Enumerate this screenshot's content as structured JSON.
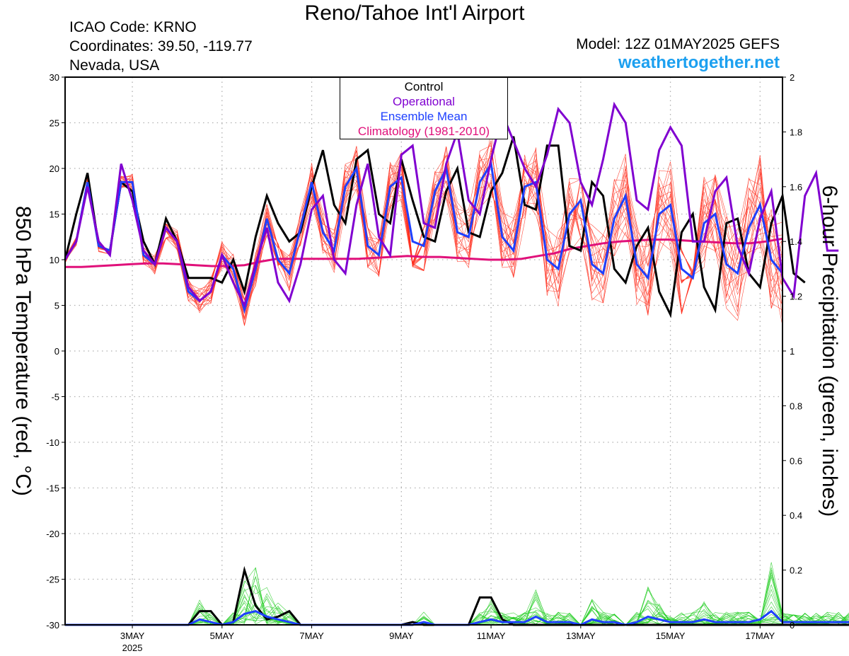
{
  "header": {
    "title": "Reno/Tahoe Int'l Airport",
    "icao": "ICAO Code: KRNO",
    "coordinates": "Coordinates: 39.50, -119.77",
    "region": "Nevada, USA",
    "model": "Model: 12Z 01MAY2025 GEFS",
    "site": "weathertogether.net"
  },
  "colors": {
    "control": "#000000",
    "operational": "#8000d0",
    "ensemble_mean": "#1e40ff",
    "climatology": "#e0107a",
    "members_temp": "#ff3020",
    "members_precip": "#20cc20",
    "site": "#1ca0f0"
  },
  "chart_data": {
    "type": "line",
    "ylabel_left": "850 hPa Temperature (red, °C)",
    "ylabel_right": "6-hour Precipitation (green, inches)",
    "ylim_left": [
      -30,
      30
    ],
    "ylim_right": [
      0,
      2
    ],
    "yticks_left": [
      "30",
      "25",
      "20",
      "15",
      "10",
      "5",
      "0",
      "-5",
      "-10",
      "-15",
      "-20",
      "-25",
      "-30"
    ],
    "yticks_right": [
      "2",
      "1.8",
      "1.6",
      "1.4",
      "1.2",
      "1",
      "0.8",
      "0.6",
      "0.4",
      "0.2",
      "0"
    ],
    "xticks": [
      {
        "day": 3,
        "label": "3MAY",
        "sub": "2025"
      },
      {
        "day": 5,
        "label": "5MAY",
        "sub": ""
      },
      {
        "day": 7,
        "label": "7MAY",
        "sub": ""
      },
      {
        "day": 9,
        "label": "9MAY",
        "sub": ""
      },
      {
        "day": 11,
        "label": "11MAY",
        "sub": ""
      },
      {
        "day": 13,
        "label": "13MAY",
        "sub": ""
      },
      {
        "day": 15,
        "label": "15MAY",
        "sub": ""
      },
      {
        "day": 17,
        "label": "17MAY",
        "sub": ""
      }
    ],
    "x_start_day": 1.5,
    "x_step_days": 0.25,
    "x_end_day": 17.5,
    "legend": [
      "Control",
      "Operational",
      "Ensemble Mean",
      "Climatology (1981-2010)"
    ],
    "legend_placement": "top-center",
    "grid": true,
    "temperature": {
      "control": [
        10,
        15,
        19.5,
        11.5,
        11,
        18.5,
        17.5,
        12,
        9.5,
        14.5,
        12,
        8,
        8,
        8,
        7.5,
        10,
        6.5,
        12.5,
        17,
        14,
        12,
        13,
        18,
        22,
        16,
        14,
        21,
        22,
        15,
        14,
        21,
        16.5,
        12.5,
        12,
        17.5,
        20,
        13,
        12.5,
        17.5,
        19.5,
        23.5,
        16,
        15.5,
        22.5,
        22.5,
        11.5,
        11,
        18.5,
        17,
        9,
        7.5,
        11.5,
        13.5,
        6.5,
        4,
        13,
        15,
        7,
        4.5,
        14,
        14.5,
        8.5,
        7,
        14,
        17,
        8.5,
        7.5
      ],
      "operational": [
        10,
        12,
        18,
        12,
        10.5,
        20.5,
        16.5,
        11,
        9.5,
        13.5,
        12,
        7,
        5.5,
        6.5,
        10.5,
        7.5,
        5,
        9.5,
        13.5,
        7.5,
        5.5,
        9.5,
        15.5,
        17,
        10,
        8.5,
        16,
        20.5,
        12.5,
        10.5,
        21.5,
        22.5,
        14,
        13.5,
        20.5,
        24,
        16.5,
        15,
        21,
        26,
        23,
        20,
        18,
        21.5,
        26.5,
        25,
        18.5,
        16,
        21,
        27,
        25,
        16.5,
        15.5,
        22,
        24.5,
        22.5,
        12,
        12,
        17.5,
        19,
        11.5,
        8.5,
        14.5,
        17.5,
        8,
        6,
        17,
        19.5,
        11,
        11
      ],
      "ensemble_mean": [
        10,
        12,
        18.5,
        11.5,
        11,
        18.5,
        18.5,
        10.5,
        9.5,
        13.5,
        12,
        6.5,
        5.5,
        6.5,
        10.5,
        9,
        4.5,
        9,
        14.5,
        10,
        8.5,
        13.5,
        18.5,
        13,
        11,
        18,
        20,
        11.5,
        10.5,
        18,
        19,
        12,
        11.5,
        17.5,
        20,
        13,
        12.5,
        18.5,
        20.5,
        12.5,
        11,
        18,
        18.5,
        10,
        9,
        15,
        16.5,
        9.5,
        8.5,
        14.5,
        17,
        9.5,
        8,
        15,
        16,
        9,
        8,
        14,
        15,
        9.5,
        8.5,
        13.5,
        16,
        10,
        8.5
      ],
      "climatology": [
        9.2,
        9.2,
        9.3,
        9.4,
        9.5,
        9.6,
        9.6,
        9.5,
        9.4,
        9.3,
        9.3,
        9.4,
        9.8,
        10.1,
        10.1,
        10.1,
        10.1,
        10.1,
        10.1,
        10.2,
        10.3,
        10.4,
        10.3,
        10.3,
        10.2,
        10.1,
        10.0,
        10.0,
        10.1,
        10.4,
        10.7,
        11.2,
        11.5,
        11.8,
        12.0,
        12.1,
        12.2,
        12.2,
        12.1,
        12.0,
        11.9,
        11.8,
        11.8,
        12.0,
        12.3
      ]
    },
    "precipitation": {
      "control": [
        0,
        0,
        0,
        0,
        0,
        0,
        0,
        0,
        0,
        0,
        0,
        0,
        0.05,
        0.05,
        0,
        0.01,
        0.2,
        0.07,
        0.02,
        0.03,
        0.05,
        0,
        0,
        0,
        0,
        0,
        0,
        0,
        0,
        0,
        0,
        0.01,
        0,
        0,
        0,
        0,
        0,
        0.1,
        0.1,
        0.02,
        0,
        0,
        0,
        0,
        0,
        0,
        0,
        0,
        0,
        0,
        0,
        0,
        0,
        0,
        0,
        0,
        0,
        0,
        0,
        0,
        0,
        0,
        0,
        0,
        0,
        0,
        0,
        0,
        0,
        0,
        0,
        0,
        0,
        0,
        0,
        0
      ],
      "ensemble_mean": [
        0,
        0,
        0,
        0,
        0,
        0,
        0,
        0,
        0,
        0,
        0,
        0,
        0.02,
        0.01,
        0,
        0.01,
        0.04,
        0.05,
        0.03,
        0.02,
        0.01,
        0,
        0,
        0,
        0,
        0,
        0,
        0,
        0,
        0,
        0,
        0,
        0.01,
        0,
        0,
        0,
        0,
        0.01,
        0.02,
        0.01,
        0.01,
        0.01,
        0.03,
        0.01,
        0.01,
        0.01,
        0,
        0.02,
        0.01,
        0.01,
        0,
        0.01,
        0.03,
        0.02,
        0.01,
        0.01,
        0.01,
        0.02,
        0.01,
        0.01,
        0.01,
        0.01,
        0.02,
        0.05,
        0.01,
        0.01,
        0.01,
        0.01,
        0.01,
        0.01,
        0.01,
        0.02,
        0.01,
        0.01,
        0.02,
        0.01
      ]
    }
  }
}
